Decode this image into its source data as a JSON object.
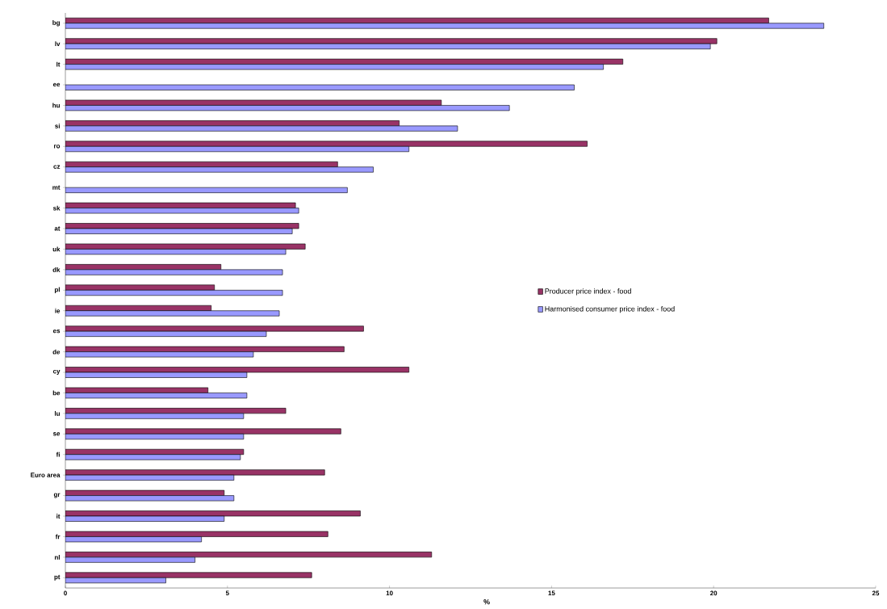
{
  "chart_data": {
    "type": "bar",
    "orientation": "horizontal",
    "xlabel": "%",
    "categories": [
      "bg",
      "lv",
      "lt",
      "ee",
      "hu",
      "si",
      "ro",
      "cz",
      "mt",
      "sk",
      "at",
      "uk",
      "dk",
      "pl",
      "ie",
      "es",
      "de",
      "cy",
      "be",
      "lu",
      "se",
      "fi",
      "Euro area",
      "gr",
      "it",
      "fr",
      "nl",
      "pt"
    ],
    "series": [
      {
        "name": "Producer price index - food",
        "color": "#993366",
        "values": [
          21.7,
          20.1,
          17.2,
          null,
          11.6,
          10.3,
          16.1,
          8.4,
          null,
          7.1,
          7.2,
          7.4,
          4.8,
          4.6,
          4.5,
          9.2,
          8.6,
          10.6,
          4.4,
          6.8,
          8.5,
          5.5,
          8.0,
          4.9,
          9.1,
          8.1,
          11.3,
          7.6
        ]
      },
      {
        "name": "Harmonised consumer price index - food",
        "color": "#9999ff",
        "values": [
          23.4,
          19.9,
          16.6,
          15.7,
          13.7,
          12.1,
          10.6,
          9.5,
          8.7,
          7.2,
          7.0,
          6.8,
          6.7,
          6.7,
          6.6,
          6.2,
          5.8,
          5.6,
          5.6,
          5.5,
          5.5,
          5.4,
          5.2,
          5.2,
          4.9,
          4.2,
          4.0,
          3.1
        ]
      }
    ],
    "xlim": [
      0,
      25
    ],
    "xticks": [
      0,
      5,
      10,
      15,
      20,
      25
    ],
    "grid": false,
    "legend": "right"
  }
}
